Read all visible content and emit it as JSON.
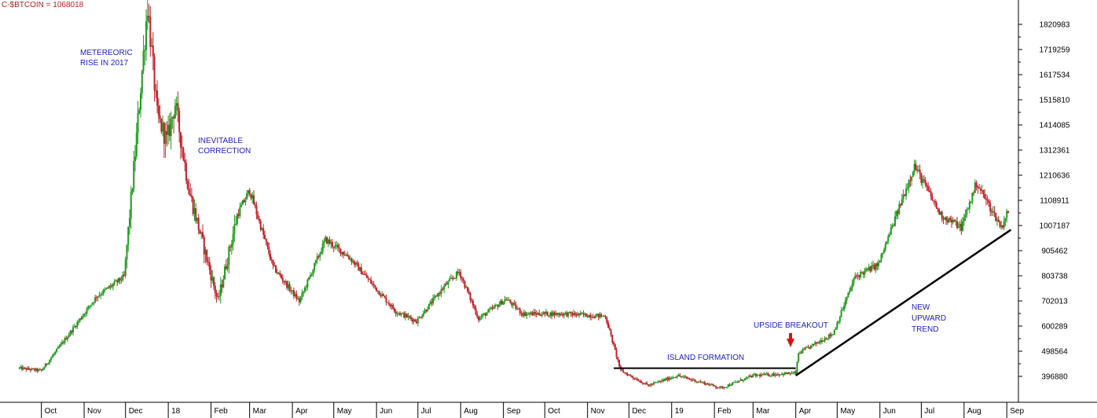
{
  "header": {
    "symbol_label": "C-$BTCOIN = 1068018"
  },
  "annotations": {
    "meteoric_line1": "METEREORIC",
    "meteoric_line2": "RISE IN 2017",
    "correction_line1": "INEVITABLE",
    "correction_line2": "CORRECTION",
    "island": "ISLAND FORMATION",
    "breakout": "UPSIDE BREAKOUT",
    "trend_line1": "NEW",
    "trend_line2": "UPWARD",
    "trend_line3": "TREND"
  },
  "colors": {
    "up": "#1f9a1f",
    "down": "#c0222a",
    "annotation": "#2020c0",
    "header": "#b22222",
    "arrow": "#e01010",
    "axis": "#000000"
  },
  "chart_data": {
    "type": "candlestick",
    "title": "C-$BTCOIN = 1068018",
    "ylim": [
      300000,
      1900000
    ],
    "y_ticks": [
      396880,
      498564,
      600289,
      702013,
      803738,
      905462,
      1007187,
      1108911,
      1210636,
      1312361,
      1414085,
      1515810,
      1617534,
      1719259,
      1820983
    ],
    "x_ticks": [
      "Oct",
      "Nov",
      "Dec",
      "18",
      "Feb",
      "Mar",
      "Apr",
      "May",
      "Jun",
      "Jul",
      "Aug",
      "Sep",
      "Oct",
      "Nov",
      "Dec",
      "19",
      "Feb",
      "Mar",
      "Apr",
      "May",
      "Jun",
      "Jul",
      "Aug",
      "Sep"
    ],
    "series": [
      {
        "points": [
          [
            "2017-09-15",
            430000
          ],
          [
            "2017-10-01",
            420000
          ],
          [
            "2017-10-20",
            560000
          ],
          [
            "2017-11-10",
            720000
          ],
          [
            "2017-11-30",
            800000
          ],
          [
            "2017-12-08",
            1300000
          ],
          [
            "2017-12-17",
            1900000
          ],
          [
            "2017-12-24",
            1450000
          ],
          [
            "2017-12-31",
            1350000
          ],
          [
            "2018-01-06",
            1500000
          ],
          [
            "2018-01-16",
            1150000
          ],
          [
            "2018-02-06",
            700000
          ],
          [
            "2018-02-20",
            1050000
          ],
          [
            "2018-03-01",
            1150000
          ],
          [
            "2018-03-18",
            840000
          ],
          [
            "2018-04-06",
            700000
          ],
          [
            "2018-04-25",
            950000
          ],
          [
            "2018-05-12",
            880000
          ],
          [
            "2018-06-01",
            750000
          ],
          [
            "2018-06-15",
            660000
          ],
          [
            "2018-06-30",
            620000
          ],
          [
            "2018-07-20",
            760000
          ],
          [
            "2018-07-31",
            820000
          ],
          [
            "2018-08-14",
            630000
          ],
          [
            "2018-09-03",
            710000
          ],
          [
            "2018-09-15",
            650000
          ],
          [
            "2018-10-15",
            650000
          ],
          [
            "2018-11-14",
            640000
          ],
          [
            "2018-11-25",
            420000
          ],
          [
            "2018-12-15",
            360000
          ],
          [
            "2019-01-05",
            400000
          ],
          [
            "2019-02-06",
            350000
          ],
          [
            "2019-03-01",
            400000
          ],
          [
            "2019-04-01",
            410000
          ],
          [
            "2019-04-03",
            490000
          ],
          [
            "2019-04-28",
            570000
          ],
          [
            "2019-05-14",
            800000
          ],
          [
            "2019-05-31",
            850000
          ],
          [
            "2019-06-26",
            1250000
          ],
          [
            "2019-07-15",
            1050000
          ],
          [
            "2019-07-30",
            1000000
          ],
          [
            "2019-08-10",
            1180000
          ],
          [
            "2019-08-28",
            1000000
          ],
          [
            "2019-09-02",
            1068018
          ]
        ]
      }
    ],
    "overlays": {
      "island_level": 430000,
      "island_range": [
        "2018-11-20",
        "2019-04-01"
      ],
      "trend_from": [
        "2019-04-01",
        400000
      ],
      "trend_to": [
        "2019-09-04",
        990000
      ]
    }
  }
}
